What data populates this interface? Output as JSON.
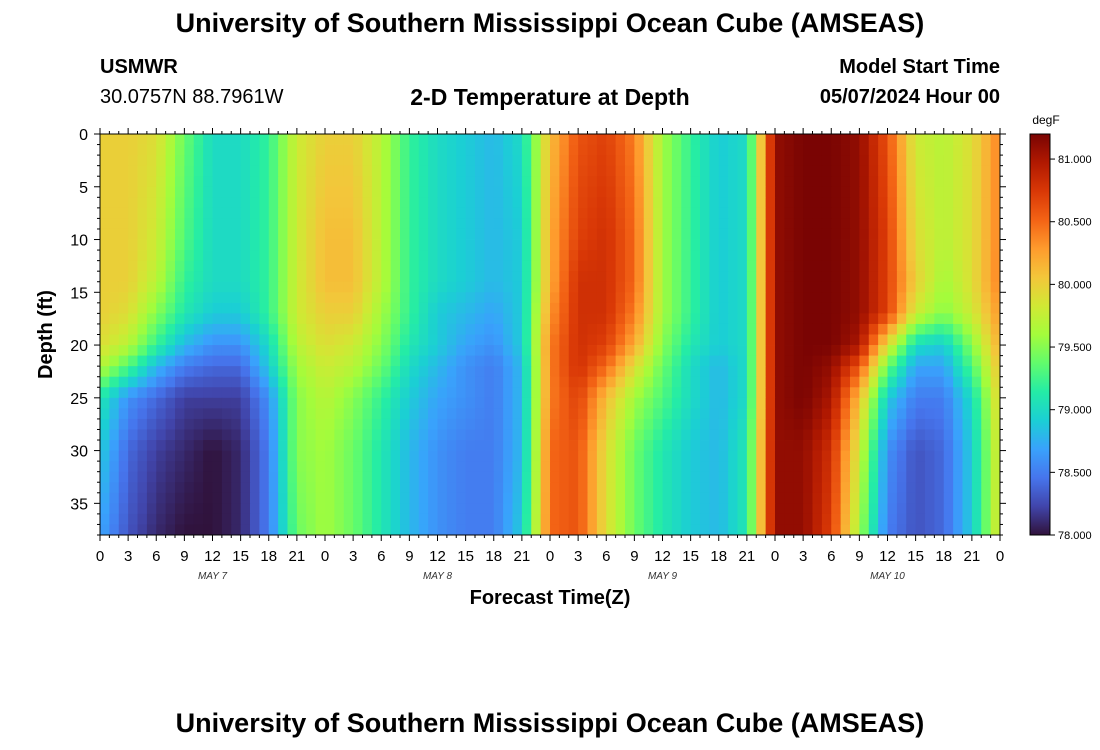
{
  "header": {
    "title": "University of Southern Mississippi Ocean Cube (AMSEAS)",
    "station": "USMWR",
    "coordinates": "30.0757N  88.7961W",
    "subtitle": "2-D Temperature at Depth",
    "model_start_label": "Model Start Time",
    "model_start_value": "05/07/2024 Hour 00"
  },
  "footer": {
    "title": "University of Southern Mississippi Ocean Cube (AMSEAS)"
  },
  "chart_data": {
    "type": "heatmap",
    "title": "2-D Temperature at Depth",
    "xlabel": "Forecast Time(Z)",
    "ylabel": "Depth (ft)",
    "x_hours_range": [
      0,
      96
    ],
    "x_tick_step_hours": 3,
    "x_tick_labels": [
      "0",
      "3",
      "6",
      "9",
      "12",
      "15",
      "18",
      "21",
      "0",
      "3",
      "6",
      "9",
      "12",
      "15",
      "18",
      "21",
      "0",
      "3",
      "6",
      "9",
      "12",
      "15",
      "18",
      "21",
      "0",
      "3",
      "6",
      "9",
      "12",
      "15",
      "18",
      "21",
      "0"
    ],
    "day_labels": [
      {
        "label": "MAY 7",
        "hour": 12
      },
      {
        "label": "MAY 8",
        "hour": 36
      },
      {
        "label": "MAY 9",
        "hour": 60
      },
      {
        "label": "MAY 10",
        "hour": 84
      }
    ],
    "y_range_ft": [
      0,
      38
    ],
    "y_tick_values": [
      0,
      5,
      10,
      15,
      20,
      25,
      30,
      35
    ],
    "colorbar": {
      "unit": "degF",
      "min": 78.0,
      "max": 81.2,
      "tick_values": [
        78.0,
        78.5,
        79.0,
        79.5,
        80.0,
        80.5,
        81.0
      ],
      "tick_labels": [
        "78.000",
        "78.500",
        "79.000",
        "79.500",
        "80.000",
        "80.500",
        "81.000"
      ],
      "colormap": [
        "#30123b",
        "#4145ab",
        "#4675ed",
        "#39a2fc",
        "#1bcfd4",
        "#24eca6",
        "#61fc6c",
        "#a4fc3b",
        "#d1e834",
        "#f3c63a",
        "#fe9b2d",
        "#f36315",
        "#d93806",
        "#b11901",
        "#7a0403"
      ]
    },
    "depth_rows_ft": [
      0,
      10,
      14,
      17,
      20,
      22,
      25,
      30,
      38
    ],
    "time_cols_hours": [
      0,
      3,
      6,
      9,
      12,
      15,
      18,
      21,
      24,
      27,
      30,
      33,
      36,
      39,
      42,
      45,
      48,
      51,
      54,
      57,
      60,
      63,
      66,
      69,
      72,
      75,
      78,
      81,
      84,
      87,
      90,
      93,
      96
    ],
    "temperature_degF": [
      [
        80.0,
        80.0,
        79.9,
        79.4,
        79.0,
        79.0,
        79.2,
        79.8,
        80.0,
        80.0,
        79.7,
        79.2,
        79.0,
        78.9,
        78.8,
        79.0,
        80.1,
        80.6,
        80.7,
        80.4,
        79.6,
        79.2,
        78.9,
        79.0,
        81.1,
        81.2,
        81.2,
        81.1,
        80.6,
        79.8,
        79.7,
        79.9,
        80.4
      ],
      [
        80.0,
        80.0,
        79.8,
        79.3,
        79.0,
        79.0,
        79.2,
        79.8,
        80.1,
        80.1,
        79.7,
        79.2,
        79.0,
        78.9,
        78.8,
        78.9,
        80.2,
        80.7,
        80.8,
        80.5,
        79.6,
        79.2,
        78.9,
        79.0,
        81.1,
        81.2,
        81.2,
        81.1,
        80.7,
        79.9,
        79.7,
        79.9,
        80.4
      ],
      [
        80.0,
        80.0,
        79.7,
        79.2,
        79.0,
        79.0,
        79.2,
        79.8,
        80.1,
        80.1,
        79.7,
        79.2,
        79.0,
        78.9,
        78.8,
        78.9,
        80.2,
        80.8,
        80.8,
        80.5,
        79.6,
        79.2,
        78.9,
        79.0,
        81.1,
        81.2,
        81.2,
        81.1,
        80.7,
        80.0,
        79.6,
        79.9,
        80.4
      ],
      [
        80.0,
        79.9,
        79.5,
        79.1,
        78.9,
        78.9,
        79.2,
        79.8,
        80.0,
        80.0,
        79.6,
        79.2,
        78.9,
        78.8,
        78.7,
        78.9,
        80.3,
        80.8,
        80.8,
        80.4,
        79.6,
        79.2,
        78.9,
        79.0,
        81.1,
        81.2,
        81.2,
        81.1,
        80.7,
        79.8,
        79.5,
        79.8,
        80.3
      ],
      [
        79.9,
        79.7,
        79.2,
        78.8,
        78.6,
        78.6,
        79.0,
        79.7,
        79.9,
        79.8,
        79.5,
        79.1,
        78.9,
        78.7,
        78.6,
        78.9,
        80.4,
        80.8,
        80.7,
        80.2,
        79.5,
        79.1,
        78.9,
        79.0,
        81.1,
        81.2,
        81.2,
        81.0,
        79.9,
        79.0,
        78.9,
        79.5,
        80.2
      ],
      [
        79.7,
        79.3,
        78.8,
        78.5,
        78.4,
        78.4,
        78.9,
        79.6,
        79.8,
        79.7,
        79.4,
        79.0,
        78.8,
        78.6,
        78.5,
        78.8,
        80.4,
        80.8,
        80.5,
        79.9,
        79.4,
        79.0,
        78.8,
        79.0,
        81.1,
        81.2,
        81.1,
        80.6,
        79.4,
        78.7,
        78.7,
        79.3,
        80.1
      ],
      [
        79.1,
        78.6,
        78.4,
        78.2,
        78.2,
        78.2,
        78.6,
        79.5,
        79.7,
        79.5,
        79.2,
        78.9,
        78.7,
        78.6,
        78.5,
        78.8,
        80.4,
        80.7,
        80.1,
        79.6,
        79.3,
        79.0,
        78.8,
        79.0,
        81.1,
        81.2,
        81.0,
        80.1,
        78.9,
        78.5,
        78.5,
        79.0,
        80.0
      ],
      [
        78.9,
        78.4,
        78.2,
        78.1,
        78.0,
        78.1,
        78.5,
        79.5,
        79.6,
        79.4,
        79.1,
        78.8,
        78.6,
        78.5,
        78.5,
        78.8,
        80.5,
        80.6,
        79.9,
        79.4,
        79.1,
        78.9,
        78.8,
        79.1,
        81.1,
        81.1,
        80.8,
        79.8,
        78.6,
        78.3,
        78.4,
        78.9,
        79.9
      ],
      [
        78.7,
        78.3,
        78.1,
        78.0,
        78.0,
        78.1,
        78.5,
        79.4,
        79.6,
        79.4,
        79.1,
        78.8,
        78.6,
        78.5,
        78.5,
        78.9,
        80.5,
        80.6,
        79.9,
        79.4,
        79.1,
        78.9,
        78.8,
        79.1,
        81.1,
        81.1,
        80.7,
        79.6,
        78.5,
        78.3,
        78.4,
        78.9,
        79.9
      ]
    ]
  }
}
